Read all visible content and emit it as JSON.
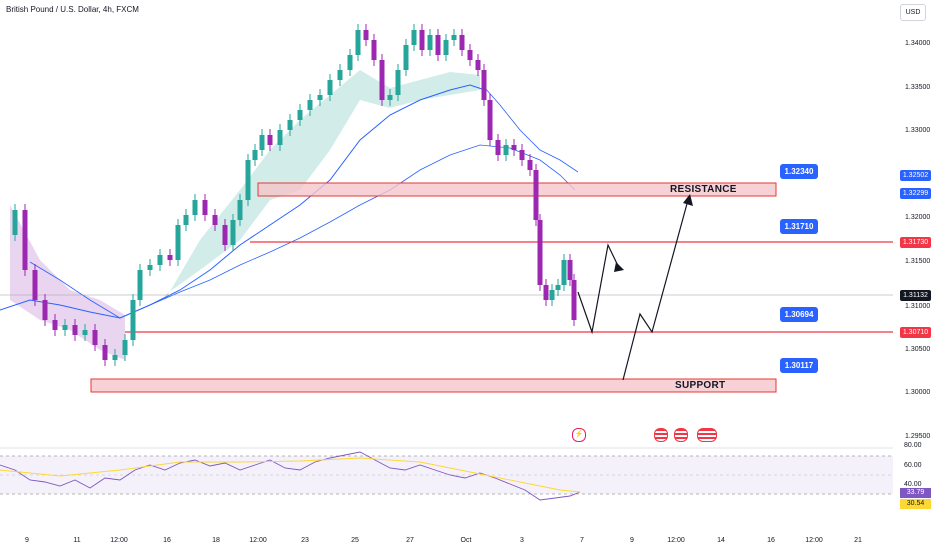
{
  "title": "British Pound / U.S. Dollar, 4h, FXCM",
  "currency_button": "USD",
  "y_axis_ticks": [
    "1.34000",
    "1.33500",
    "1.33000",
    "1.32500",
    "1.32000",
    "1.31500",
    "1.31000",
    "1.30500",
    "1.30000",
    "1.29500"
  ],
  "x_axis_ticks": [
    "9",
    "11",
    "12:00",
    "16",
    "18",
    "12:00",
    "23",
    "25",
    "27",
    "Oct",
    "3",
    "7",
    "9",
    "12:00",
    "14",
    "16",
    "12:00",
    "21"
  ],
  "price_tags": {
    "r1": "1.32502",
    "r2": "1.32299",
    "level_blue": "1.31730",
    "last_price": "1.31132",
    "level_red": "1.30710"
  },
  "callouts": {
    "resistance_value": "1.32340",
    "level1_value": "1.31710",
    "level2_value": "1.30694",
    "support_value": "1.30117"
  },
  "zones": {
    "resistance_label": "RESISTANCE",
    "support_label": "SUPPORT"
  },
  "rsi": {
    "ticks": [
      "80.00",
      "60.00",
      "40.00"
    ],
    "value1": "33.79",
    "value2": "30.54"
  },
  "colors": {
    "up": "#26a69a",
    "down": "#9c27b0",
    "zone_fill": "#f5c6cb",
    "zone_border": "#e53935",
    "line_red": "#f23645",
    "callout_bg": "#2962ff"
  },
  "icons": [
    "lightning-event-icon",
    "us-flag-event-icon",
    "us-flag-event-icon",
    "us-flag-event-icon"
  ]
}
